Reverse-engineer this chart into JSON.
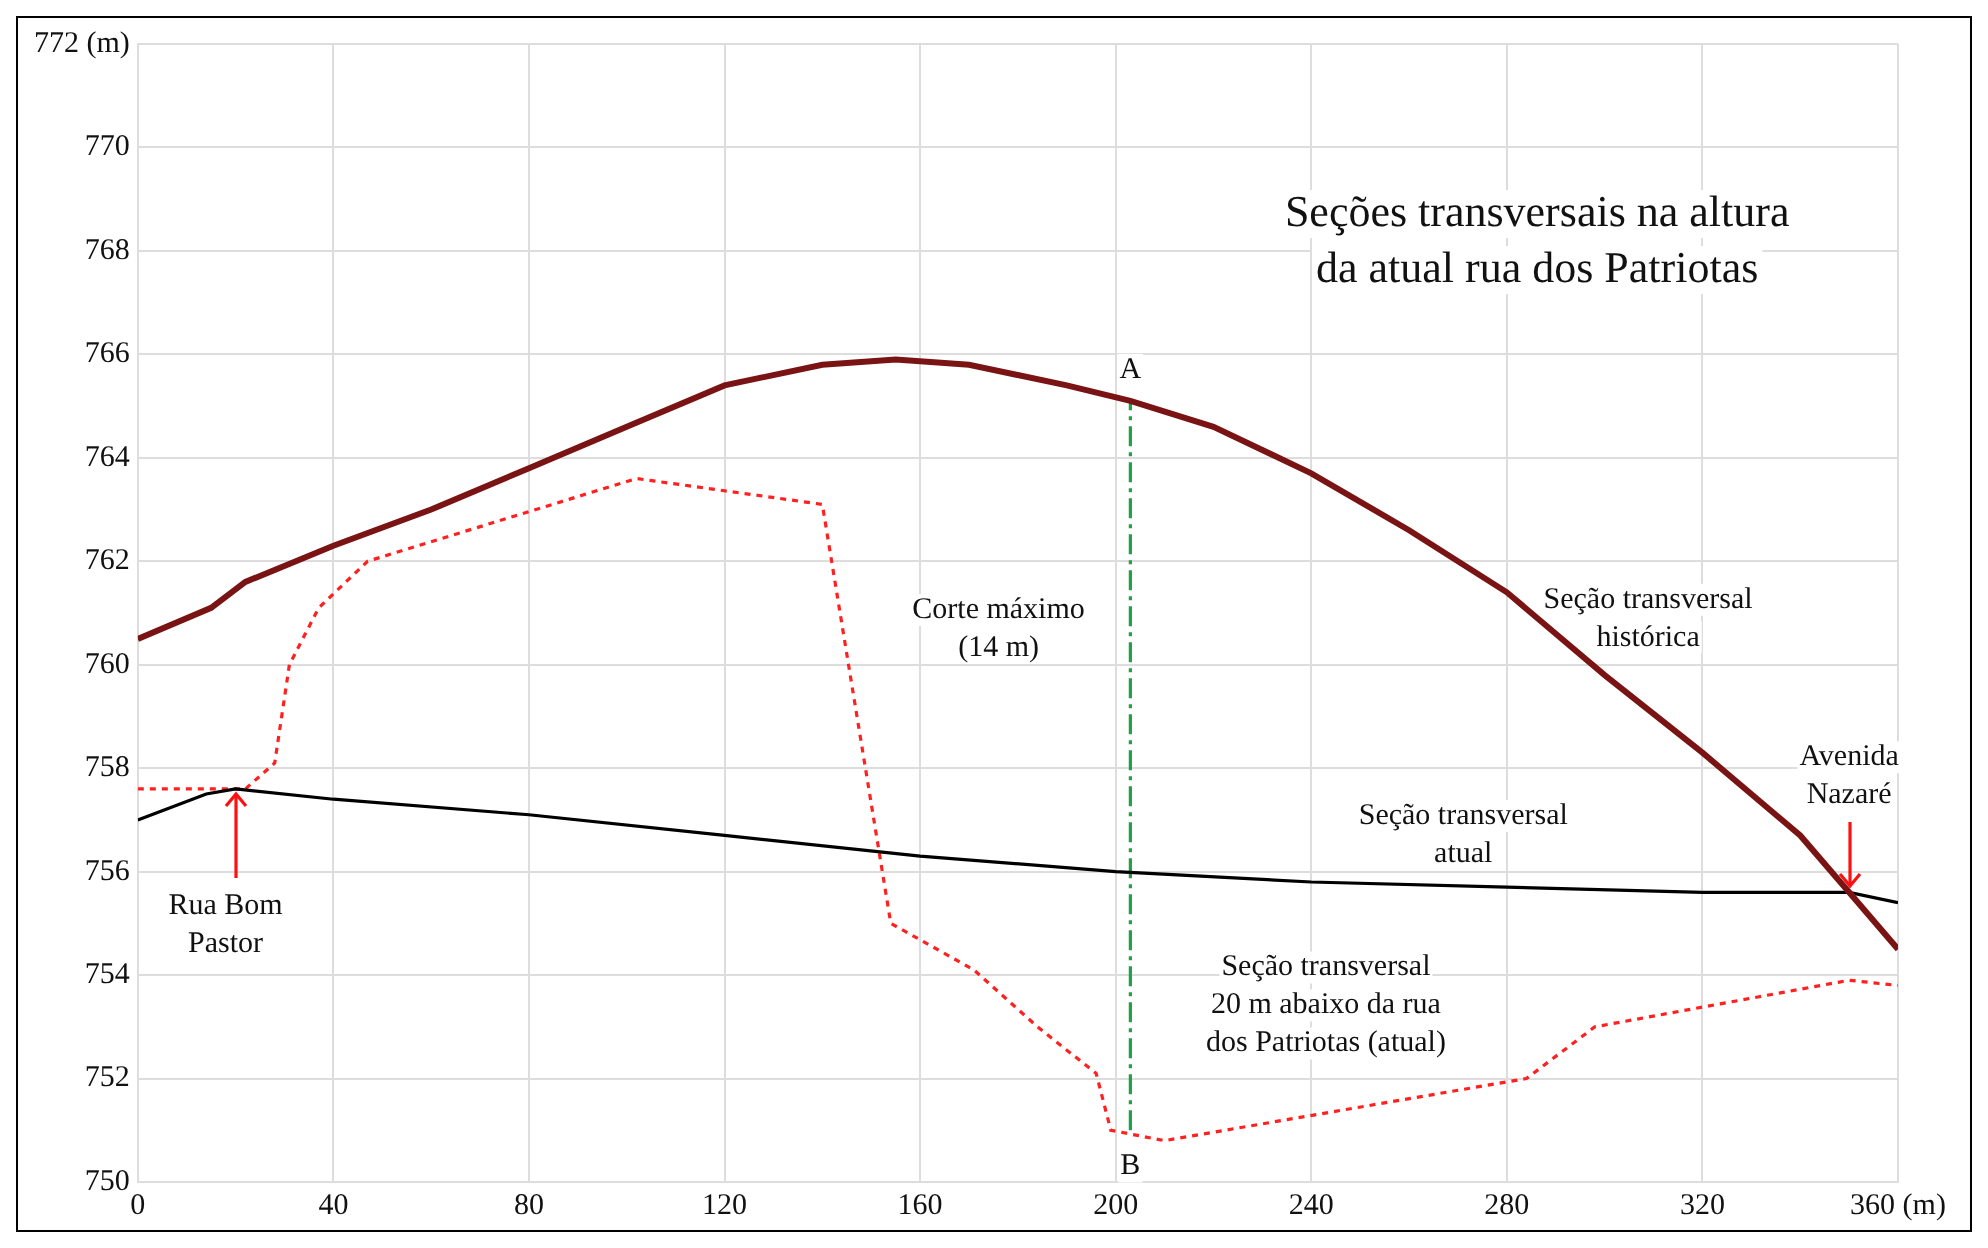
{
  "chart_data": {
    "type": "line",
    "title": "Seções transversais na altura\nda atual rua dos Patriotas",
    "xlim": [
      0,
      360
    ],
    "xticks": [
      0,
      40,
      80,
      120,
      160,
      200,
      240,
      280,
      320,
      {
        "value": 360,
        "label": "360 (m)"
      }
    ],
    "ylim": [
      750,
      772
    ],
    "yticks": [
      750,
      752,
      754,
      756,
      758,
      760,
      762,
      764,
      766,
      768,
      770,
      {
        "value": 772,
        "label": "772 (m)"
      }
    ],
    "grid": true,
    "legend": false,
    "marker": "none",
    "series": [
      {
        "color": "#7a1414",
        "line_style": "solid",
        "x": [
          0,
          15,
          22,
          40,
          60,
          80,
          100,
          120,
          140,
          155,
          170,
          190,
          203,
          220,
          240,
          260,
          280,
          290,
          300,
          320,
          340,
          350,
          360
        ],
        "values": [
          760.5,
          761.1,
          761.6,
          762.3,
          763.0,
          763.8,
          764.6,
          765.4,
          765.8,
          765.9,
          765.8,
          765.4,
          765.1,
          764.6,
          763.7,
          762.6,
          761.4,
          760.6,
          759.8,
          758.3,
          756.7,
          755.6,
          754.5
        ]
      },
      {
        "color": "#000000",
        "line_style": "solid",
        "x": [
          0,
          14,
          20,
          40,
          80,
          120,
          160,
          200,
          240,
          280,
          320,
          350,
          360
        ],
        "values": [
          757.0,
          757.5,
          757.6,
          757.4,
          757.1,
          756.7,
          756.3,
          756.0,
          755.8,
          755.7,
          755.6,
          755.6,
          755.4
        ]
      },
      {
        "color": "#ff2020",
        "line_style": "dotted",
        "x": [
          0,
          22,
          28,
          31,
          37,
          47,
          102,
          140,
          154,
          171,
          184,
          196,
          199,
          210,
          284,
          298,
          350,
          360
        ],
        "values": [
          757.6,
          757.6,
          758.1,
          760.0,
          761.1,
          762.0,
          763.6,
          763.1,
          755.0,
          754.1,
          753.0,
          752.1,
          751.0,
          750.8,
          752.0,
          753.0,
          753.9,
          753.8
        ]
      },
      {
        "color": "#22a045",
        "line_style": "dashed",
        "x": [
          203,
          203
        ],
        "values": [
          751.0,
          765.1
        ]
      }
    ],
    "annotations": [
      {
        "text": "A",
        "x": 203,
        "y": 765.7
      },
      {
        "text": "B",
        "x": 203,
        "y": 750.3
      },
      "Corte máximo\n(14 m)",
      "Seção transversal\nhistórica",
      {
        "text": "Avenida\nNazaré",
        "x": 350,
        "y": 755.6
      },
      "Seção transversal\natual",
      {
        "text": "Rua Bom\nPastor",
        "x": 20,
        "y": 757.6
      },
      "Seção transversal\n20 m abaixo da rua\ndos Patriotas (atual)"
    ]
  }
}
